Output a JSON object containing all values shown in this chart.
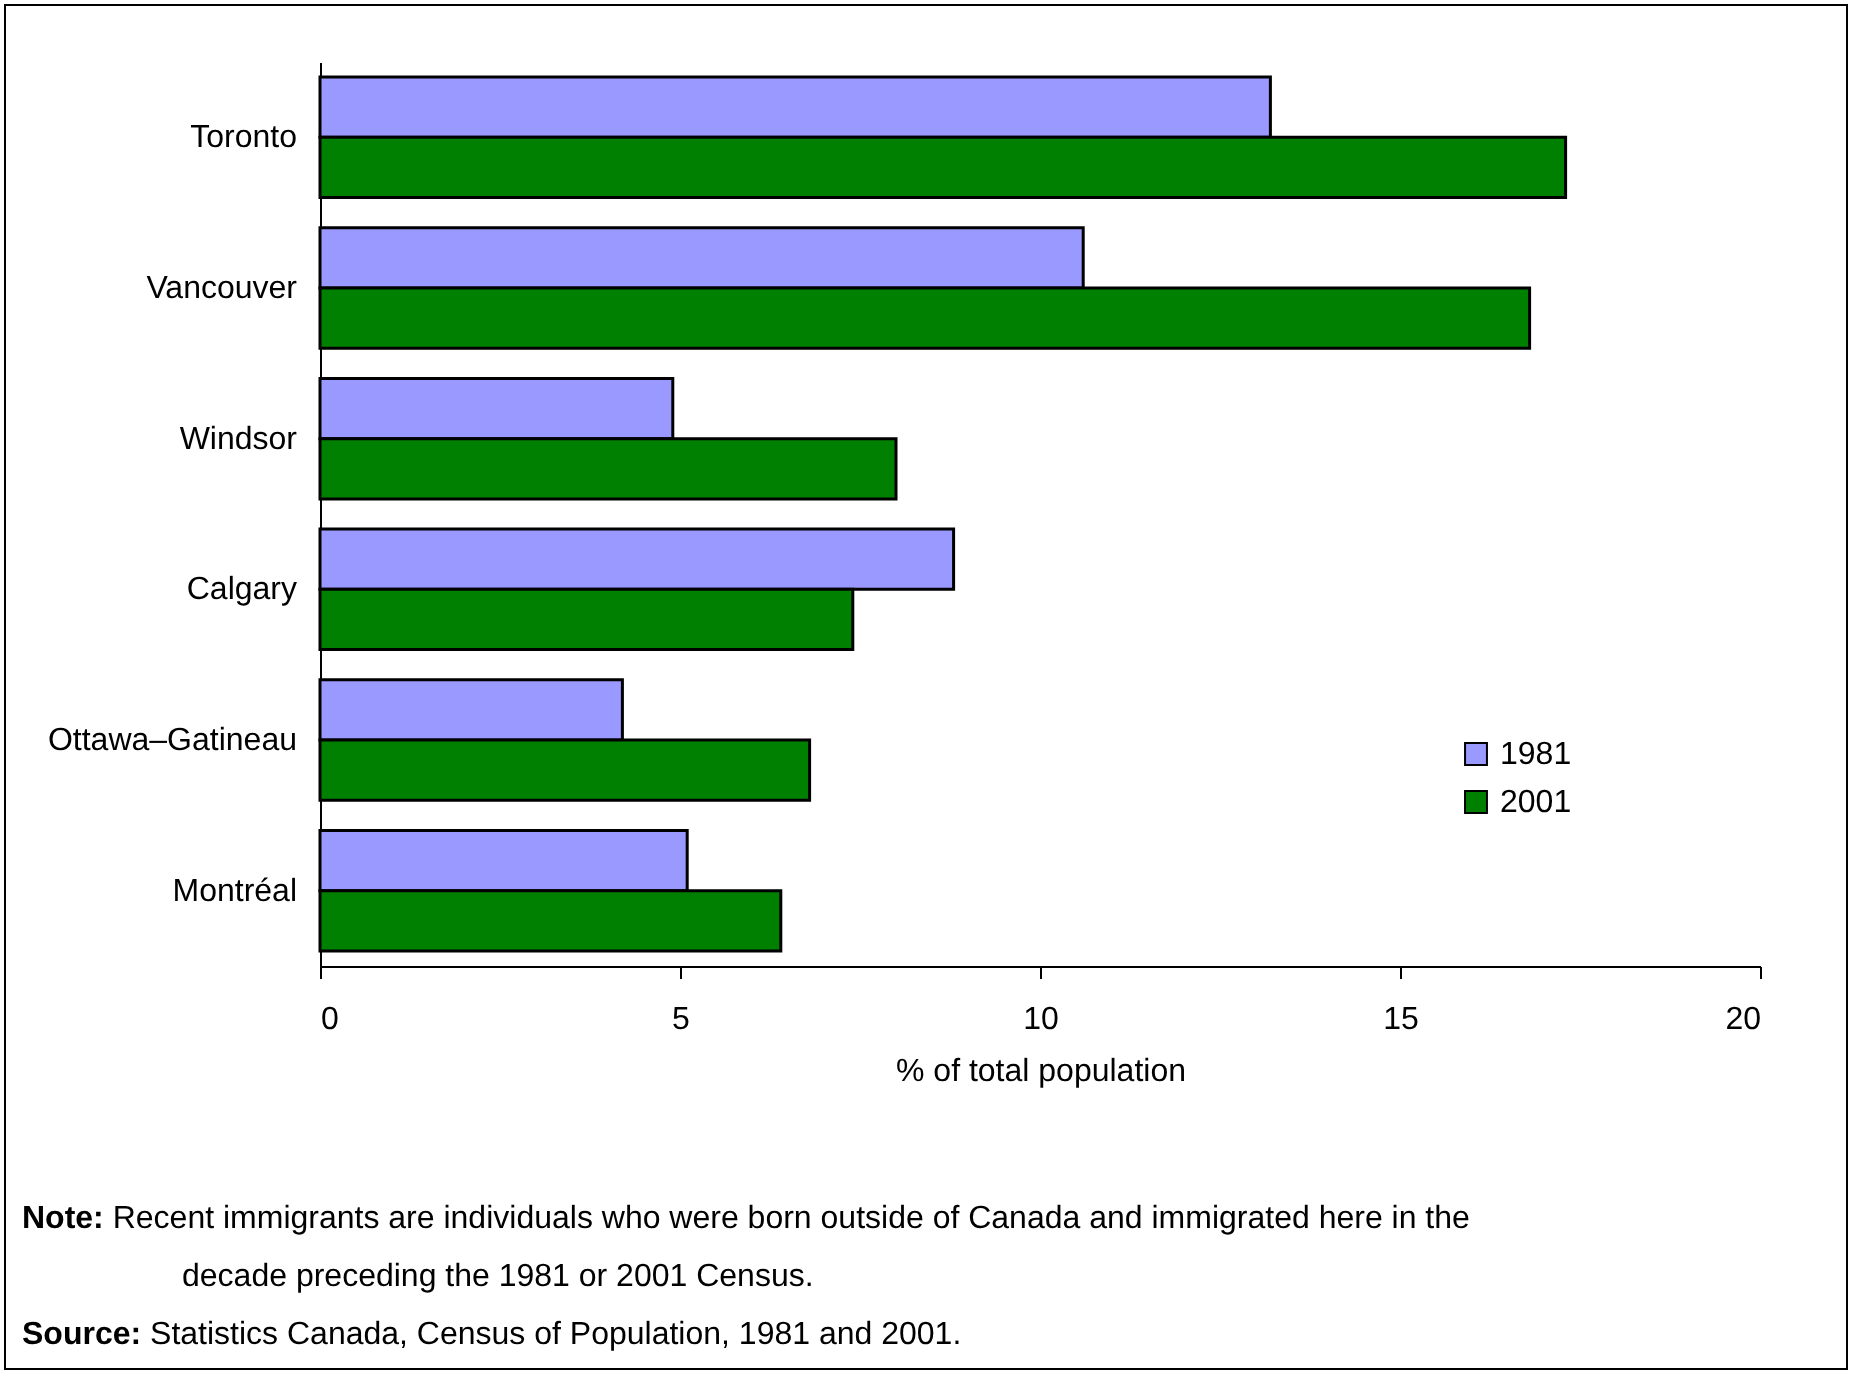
{
  "chart_data": {
    "type": "bar",
    "orientation": "horizontal",
    "categories": [
      "Toronto",
      "Vancouver",
      "Windsor",
      "Calgary",
      "Ottawa–Gatineau",
      "Montréal"
    ],
    "series": [
      {
        "name": "1981",
        "color": "#9999ff",
        "values": [
          13.2,
          10.6,
          4.9,
          8.8,
          4.2,
          5.1
        ]
      },
      {
        "name": "2001",
        "color": "#008000",
        "values": [
          17.3,
          16.8,
          8.0,
          7.4,
          6.8,
          6.4
        ]
      }
    ],
    "xlabel": "% of total population",
    "xlim": [
      0,
      20
    ],
    "xticks": [
      0,
      5,
      10,
      15,
      20
    ],
    "grid": false,
    "legend": "bottom right",
    "annotations": [
      "Note: Recent immigrants are individuals who were born outside of Canada and immigrated here in the decade preceding the 1981 or 2001 Census.",
      "Source: Statistics Canada, Census of Population, 1981 and 2001."
    ]
  }
}
